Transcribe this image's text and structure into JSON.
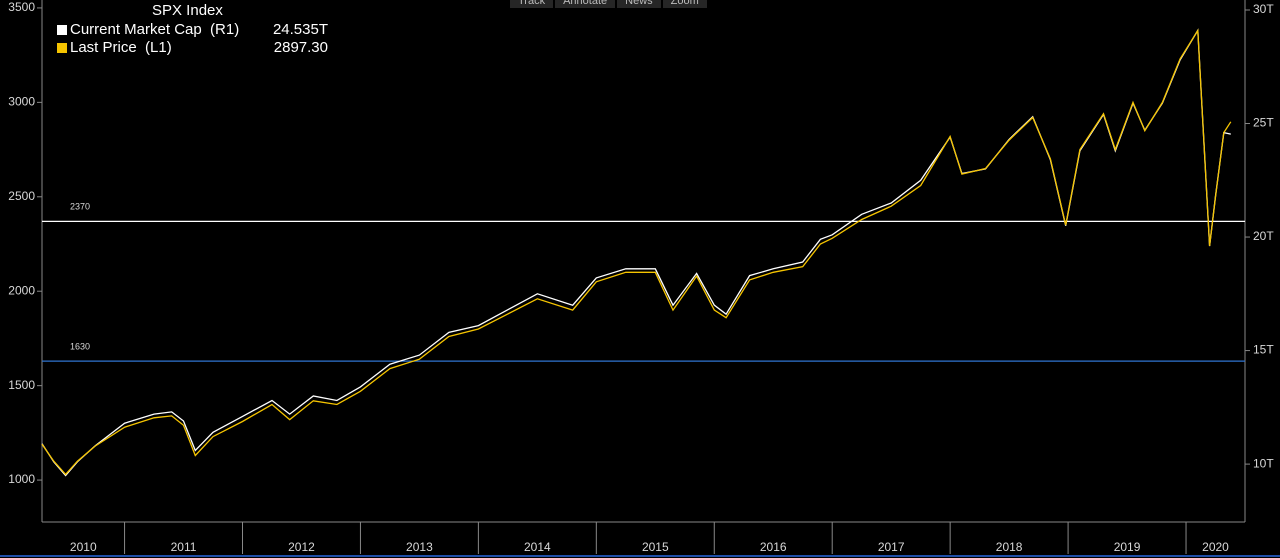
{
  "toolbar": [
    "Track",
    "Annotate",
    "News",
    "Zoom"
  ],
  "chart_data": {
    "type": "line",
    "title": "SPX Index",
    "x": [
      2010.3,
      2010.4,
      2010.5,
      2010.6,
      2010.75,
      2011.0,
      2011.25,
      2011.4,
      2011.5,
      2011.6,
      2011.75,
      2012.0,
      2012.25,
      2012.4,
      2012.6,
      2012.8,
      2013.0,
      2013.25,
      2013.5,
      2013.75,
      2014.0,
      2014.25,
      2014.5,
      2014.8,
      2015.0,
      2015.25,
      2015.5,
      2015.65,
      2015.85,
      2016.0,
      2016.1,
      2016.3,
      2016.5,
      2016.75,
      2016.9,
      2017.0,
      2017.25,
      2017.5,
      2017.75,
      2018.0,
      2018.1,
      2018.3,
      2018.5,
      2018.7,
      2018.85,
      2018.98,
      2019.1,
      2019.3,
      2019.4,
      2019.55,
      2019.65,
      2019.8,
      2019.95,
      2020.1,
      2020.2,
      2020.25,
      2020.32,
      2020.38
    ],
    "series": [
      {
        "name": "Current Market Cap  (R1)",
        "last_label": "24.535T",
        "color": "#ffffff",
        "axis": "y2",
        "values": [
          10.9,
          10.1,
          9.5,
          10.1,
          10.8,
          11.8,
          12.2,
          12.3,
          11.9,
          10.6,
          11.4,
          12.1,
          12.8,
          12.2,
          13.0,
          12.8,
          13.4,
          14.4,
          14.8,
          15.8,
          16.1,
          16.8,
          17.5,
          17.0,
          18.2,
          18.6,
          18.6,
          17.0,
          18.4,
          17.0,
          16.6,
          18.3,
          18.6,
          18.9,
          19.9,
          20.1,
          21.0,
          21.5,
          22.5,
          24.4,
          22.8,
          23.0,
          24.3,
          25.3,
          23.4,
          20.5,
          23.8,
          25.4,
          23.8,
          25.9,
          24.7,
          25.9,
          27.8,
          29.1,
          19.6,
          21.8,
          24.6,
          24.535
        ]
      },
      {
        "name": "Last Price  (L1)",
        "last_label": "2897.30",
        "color": "#f5c400",
        "axis": "y",
        "values": [
          1190,
          1100,
          1030,
          1100,
          1180,
          1280,
          1330,
          1340,
          1290,
          1130,
          1230,
          1310,
          1400,
          1320,
          1420,
          1400,
          1470,
          1590,
          1640,
          1760,
          1800,
          1880,
          1960,
          1900,
          2050,
          2100,
          2100,
          1900,
          2080,
          1900,
          1860,
          2060,
          2100,
          2130,
          2250,
          2280,
          2380,
          2450,
          2560,
          2820,
          2620,
          2650,
          2800,
          2920,
          2700,
          2350,
          2750,
          2940,
          2750,
          3000,
          2850,
          3000,
          3230,
          3380,
          2240,
          2500,
          2840,
          2897.3
        ]
      }
    ],
    "xlim": [
      2010.3,
      2020.5
    ],
    "xticks": [
      2010,
      2011,
      2012,
      2013,
      2014,
      2015,
      2016,
      2017,
      2018,
      2019,
      2020
    ],
    "ylim": [
      778,
      3542
    ],
    "yticks": [
      1000,
      1500,
      2000,
      2500,
      3000,
      3500
    ],
    "y2lim": [
      7.45,
      30.44
    ],
    "y2ticks": [
      {
        "value": 10,
        "label": "10T"
      },
      {
        "value": 15,
        "label": "15T"
      },
      {
        "value": 20,
        "label": "20T"
      },
      {
        "value": 25,
        "label": "25T"
      },
      {
        "value": 30,
        "label": "30T"
      }
    ],
    "hlines": [
      {
        "value": 2370,
        "color": "#ffffff"
      },
      {
        "value": 1630,
        "color": "#2f74d0"
      }
    ]
  }
}
